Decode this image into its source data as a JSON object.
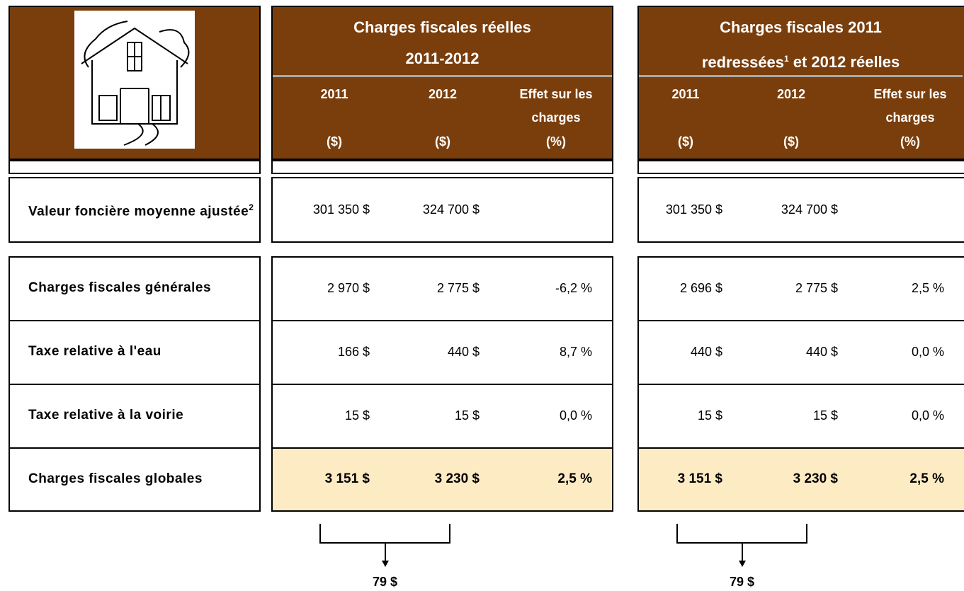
{
  "row_labels": [
    {
      "text": "Valeur foncière moyenne ajustée",
      "sup": "2"
    },
    {
      "text": "Charges fiscales générales"
    },
    {
      "text": "Taxe relative à l'eau"
    },
    {
      "text": "Taxe relative à la voirie"
    },
    {
      "text": "Charges fiscales globales"
    }
  ],
  "blocks": [
    {
      "title": [
        {
          "text": "Charges fiscales réelles"
        },
        {
          "text": "2011-2012"
        }
      ],
      "columns": [
        {
          "head": [
            "2011"
          ],
          "unit": "($)"
        },
        {
          "head": [
            "2012"
          ],
          "unit": "($)"
        },
        {
          "head": [
            "Effet sur les",
            "charges"
          ],
          "unit": "(%)"
        }
      ],
      "rows": [
        [
          "301 350 $",
          "324 700 $"
        ],
        [
          "2 970 $",
          "2 775 $",
          "-6,2 %"
        ],
        [
          "166 $",
          "440 $",
          "8,7 %"
        ],
        [
          "15 $",
          "15 $",
          "0,0 %"
        ],
        [
          "3 151 $",
          "3 230 $",
          "2,5 %"
        ]
      ],
      "difference": "79 $"
    },
    {
      "title": [
        {
          "text": "Charges fiscales 2011"
        },
        {
          "text": "redressées",
          "sup": "1",
          "after": "et 2012 réelles"
        }
      ],
      "columns": [
        {
          "head": [
            "2011"
          ],
          "unit": "($)"
        },
        {
          "head": [
            "2012"
          ],
          "unit": "($)"
        },
        {
          "head": [
            "Effet sur les",
            "charges"
          ],
          "unit": "(%)"
        }
      ],
      "rows": [
        [
          "301 350 $",
          "324 700 $"
        ],
        [
          "2 696 $",
          "2 775 $",
          "2,5 %"
        ],
        [
          "440 $",
          "440 $",
          "0,0 %"
        ],
        [
          "15 $",
          "15 $",
          "0,0 %"
        ],
        [
          "3 151 $",
          "3 230 $",
          "2,5 %"
        ]
      ],
      "difference": "79 $"
    }
  ]
}
